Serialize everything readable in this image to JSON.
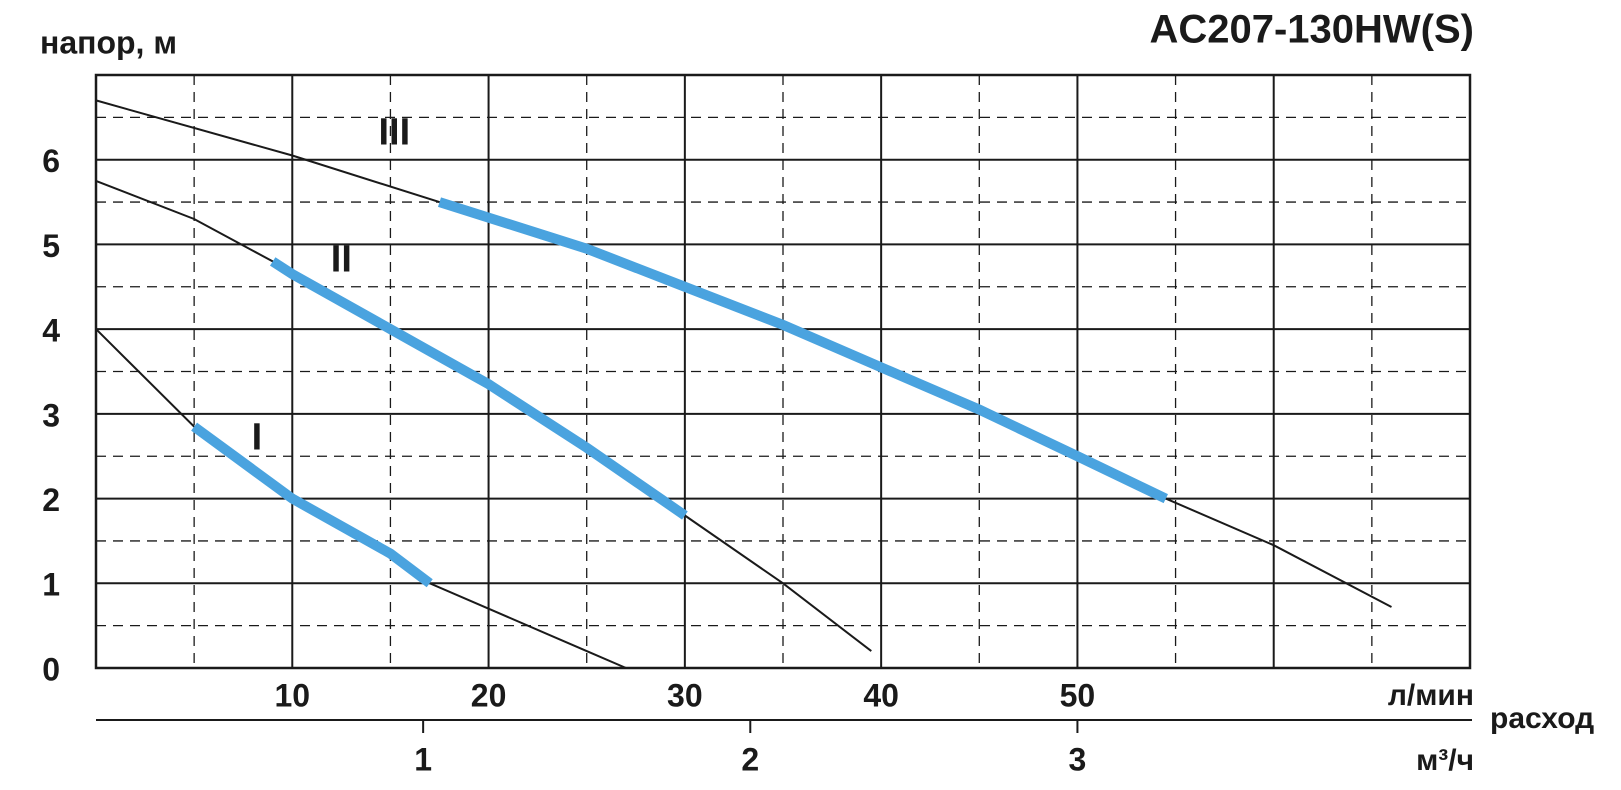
{
  "chart_data": {
    "type": "line",
    "title": "AC207-130HW(S)",
    "y_label": "напор, м",
    "x_label": "расход",
    "x_unit": "л/мин",
    "x2_unit": "м³/ч",
    "xlim": [
      0,
      70
    ],
    "xticks": [
      10,
      20,
      30,
      40,
      50
    ],
    "x2lim": [
      0,
      4.2
    ],
    "x2ticks": [
      1,
      2,
      3
    ],
    "ylim": [
      0,
      7
    ],
    "yticks": [
      0,
      1,
      2,
      3,
      4,
      5,
      6
    ],
    "xgrid": [
      10,
      20,
      30,
      40,
      50,
      60
    ],
    "xminor": [
      5,
      15,
      25,
      35,
      45,
      55,
      65
    ],
    "yminor": [
      0.5,
      1.5,
      2.5,
      3.5,
      4.5,
      5.5,
      6.5
    ],
    "grid": true,
    "color": "#1a1a1a",
    "working_color": "#4aa3df",
    "series": [
      {
        "name": "I",
        "x": [
          0,
          5,
          10,
          15,
          17,
          20,
          25,
          27
        ],
        "values": [
          4.0,
          2.85,
          2.0,
          1.35,
          1.0,
          0.7,
          0.2,
          0
        ],
        "working": [
          null,
          2.85,
          2.0,
          1.35,
          1.0,
          null,
          null,
          null
        ]
      },
      {
        "name": "II",
        "x": [
          0,
          5,
          9,
          10,
          15,
          20,
          25,
          30,
          35,
          39.5
        ],
        "values": [
          5.75,
          5.3,
          4.8,
          4.65,
          4.0,
          3.35,
          2.6,
          1.8,
          1.0,
          0.2
        ],
        "working": [
          null,
          null,
          4.8,
          4.65,
          4.0,
          3.35,
          2.6,
          1.8,
          null,
          null
        ]
      },
      {
        "name": "III",
        "x": [
          0,
          10,
          17.5,
          25,
          30,
          35,
          40,
          45,
          50,
          54.5,
          60,
          66
        ],
        "values": [
          6.7,
          6.05,
          5.5,
          4.95,
          4.5,
          4.05,
          3.55,
          3.05,
          2.5,
          2.0,
          1.45,
          0.72
        ],
        "working": [
          null,
          null,
          5.5,
          4.95,
          4.5,
          4.05,
          3.55,
          3.05,
          2.5,
          2.0,
          null,
          null
        ]
      }
    ]
  }
}
